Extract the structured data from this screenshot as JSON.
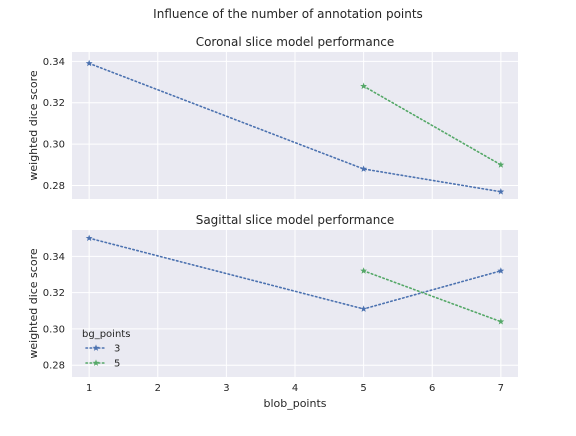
{
  "suptitle": "Influence of the number of annotation points",
  "colors": {
    "panel_bg": "#EAEAF2",
    "grid": "#FFFFFF",
    "series_3": "#4C72B0",
    "series_5": "#55A868",
    "text": "#262626"
  },
  "legend": {
    "title": "bg_points",
    "entries": [
      "3",
      "5"
    ]
  },
  "chart_data": [
    {
      "type": "line",
      "title": "Coronal slice model performance",
      "xlabel": "",
      "ylabel": "weighted dice score",
      "xlim": [
        0.75,
        7.25
      ],
      "ylim": [
        0.2735,
        0.3445
      ],
      "yticks": [
        0.28,
        0.3,
        0.32,
        0.34
      ],
      "ytick_labels": [
        "0.28",
        "0.30",
        "0.32",
        "0.34"
      ],
      "xticks": [
        1,
        2,
        3,
        4,
        5,
        6,
        7
      ],
      "show_xtick_labels": false,
      "grid": true,
      "series": [
        {
          "name": "3",
          "color_key": "series_3",
          "linestyle": "dotted",
          "marker": "star",
          "x": [
            1,
            5,
            7
          ],
          "y": [
            0.339,
            0.288,
            0.277
          ]
        },
        {
          "name": "5",
          "color_key": "series_5",
          "linestyle": "dotted",
          "marker": "star",
          "x": [
            5,
            7
          ],
          "y": [
            0.328,
            0.29
          ]
        }
      ]
    },
    {
      "type": "line",
      "title": "Sagittal slice model performance",
      "xlabel": "blob_points",
      "ylabel": "weighted dice score",
      "xlim": [
        0.75,
        7.25
      ],
      "ylim": [
        0.2735,
        0.3545
      ],
      "yticks": [
        0.28,
        0.3,
        0.32,
        0.34
      ],
      "ytick_labels": [
        "0.28",
        "0.30",
        "0.32",
        "0.34"
      ],
      "xticks": [
        1,
        2,
        3,
        4,
        5,
        6,
        7
      ],
      "xtick_labels": [
        "1",
        "2",
        "3",
        "4",
        "5",
        "6",
        "7"
      ],
      "show_xtick_labels": true,
      "grid": true,
      "legend_position": "lower-left",
      "series": [
        {
          "name": "3",
          "color_key": "series_3",
          "linestyle": "dotted",
          "marker": "star",
          "x": [
            1,
            5,
            7
          ],
          "y": [
            0.35,
            0.311,
            0.332
          ]
        },
        {
          "name": "5",
          "color_key": "series_5",
          "linestyle": "dotted",
          "marker": "star",
          "x": [
            5,
            7
          ],
          "y": [
            0.332,
            0.304
          ]
        }
      ]
    }
  ]
}
